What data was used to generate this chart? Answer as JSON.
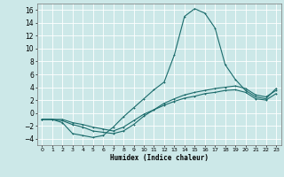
{
  "xlabel": "Humidex (Indice chaleur)",
  "ylabel": "",
  "bg_color": "#cce8e8",
  "grid_color": "#ffffff",
  "line_color": "#1a6b6b",
  "xlim": [
    -0.5,
    23.5
  ],
  "ylim": [
    -5.0,
    17.0
  ],
  "yticks": [
    -4,
    -2,
    0,
    2,
    4,
    6,
    8,
    10,
    12,
    14,
    16
  ],
  "xticks": [
    0,
    1,
    2,
    3,
    4,
    5,
    6,
    7,
    8,
    9,
    10,
    11,
    12,
    13,
    14,
    15,
    16,
    17,
    18,
    19,
    20,
    21,
    22,
    23
  ],
  "line1_x": [
    0,
    1,
    2,
    3,
    4,
    5,
    6,
    7,
    8,
    9,
    10,
    11,
    12,
    13,
    14,
    15,
    16,
    17,
    18,
    19,
    20,
    21,
    22,
    23
  ],
  "line1_y": [
    -1.0,
    -1.0,
    -1.5,
    -3.2,
    -3.5,
    -3.8,
    -3.5,
    -2.2,
    -0.6,
    0.8,
    2.2,
    3.6,
    4.8,
    9.0,
    15.0,
    16.2,
    15.5,
    13.2,
    7.5,
    5.2,
    3.5,
    2.5,
    2.2,
    3.8
  ],
  "line2_x": [
    0,
    1,
    2,
    3,
    4,
    5,
    6,
    7,
    8,
    9,
    10,
    11,
    12,
    13,
    14,
    15,
    16,
    17,
    18,
    19,
    20,
    21,
    22,
    23
  ],
  "line2_y": [
    -1.0,
    -1.0,
    -1.2,
    -1.8,
    -2.2,
    -2.8,
    -3.0,
    -3.2,
    -2.8,
    -1.8,
    -0.5,
    0.5,
    1.5,
    2.2,
    2.8,
    3.2,
    3.5,
    3.8,
    4.0,
    4.2,
    3.8,
    2.8,
    2.5,
    3.5
  ],
  "line3_x": [
    0,
    1,
    2,
    3,
    4,
    5,
    6,
    7,
    8,
    9,
    10,
    11,
    12,
    13,
    14,
    15,
    16,
    17,
    18,
    19,
    20,
    21,
    22,
    23
  ],
  "line3_y": [
    -1.0,
    -1.0,
    -1.0,
    -1.5,
    -1.8,
    -2.2,
    -2.5,
    -2.8,
    -2.2,
    -1.2,
    -0.2,
    0.5,
    1.2,
    1.8,
    2.3,
    2.6,
    3.0,
    3.2,
    3.5,
    3.6,
    3.2,
    2.2,
    2.0,
    3.0
  ]
}
